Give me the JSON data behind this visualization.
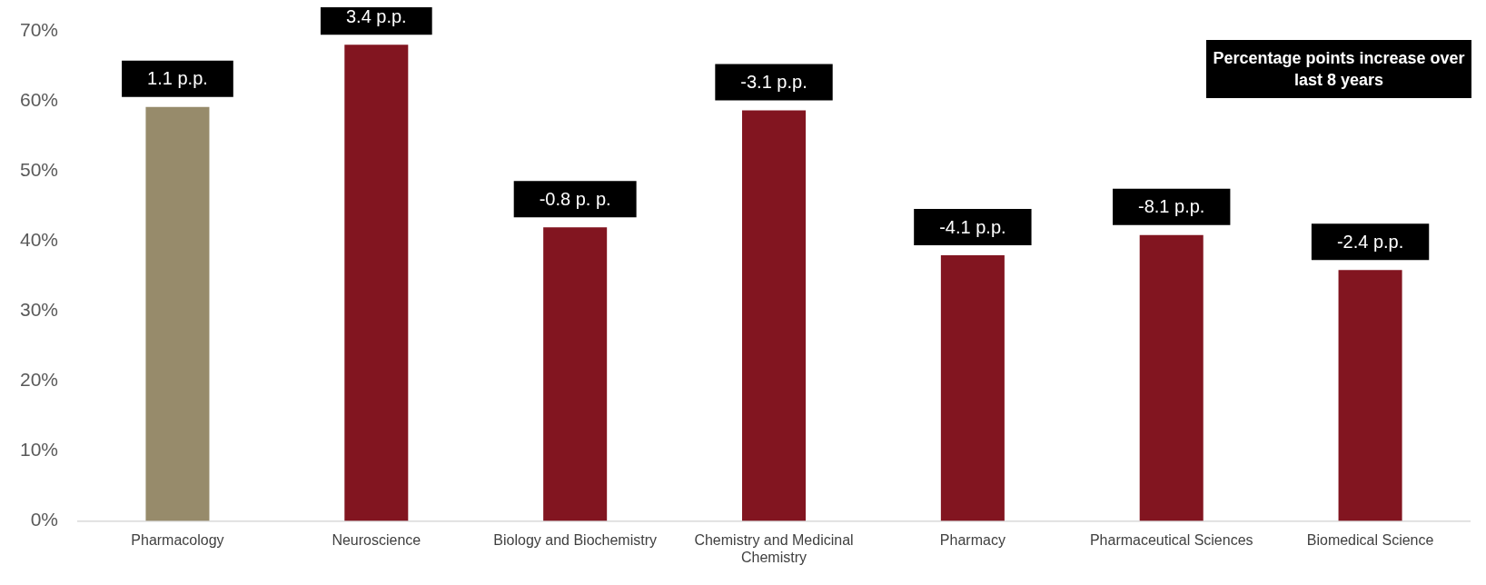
{
  "chart_data": {
    "type": "bar",
    "categories": [
      "Pharmacology",
      "Neuroscience",
      "Biology and Biochemistry",
      "Chemistry and Medicinal Chemistry",
      "Pharmacy",
      "Pharmaceutical Sciences",
      "Biomedical Science"
    ],
    "values": [
      59.2,
      68.1,
      42.0,
      58.7,
      38.0,
      40.9,
      35.9
    ],
    "colors": [
      "#978b6b",
      "#821520",
      "#821520",
      "#821520",
      "#821520",
      "#821520",
      "#821520"
    ],
    "ylim": [
      0,
      70
    ],
    "yticks": [
      {
        "value": 0,
        "label": "0%"
      },
      {
        "value": 10,
        "label": "10%"
      },
      {
        "value": 20,
        "label": "20%"
      },
      {
        "value": 30,
        "label": "30%"
      },
      {
        "value": 40,
        "label": "40%"
      },
      {
        "value": 50,
        "label": "50%"
      },
      {
        "value": 60,
        "label": "60%"
      },
      {
        "value": 70,
        "label": "70%"
      }
    ],
    "grid": false,
    "legend": false,
    "annotations": [
      "Percentage points increase over last 8 years",
      {
        "text": "1.1 p.p.",
        "x": "Pharmacology",
        "y": 59.2
      },
      {
        "text": "3.4 p.p.",
        "x": "Neuroscience",
        "y": 68.1
      },
      {
        "text": "-0.8 p. p.",
        "x": "Biology and Biochemistry",
        "y": 42.0
      },
      {
        "text": "-3.1 p.p.",
        "x": "Chemistry and Medicinal Chemistry",
        "y": 58.7
      },
      {
        "text": "-4.1 p.p.",
        "x": "Pharmacy",
        "y": 38.0
      },
      {
        "text": "-8.1 p.p.",
        "x": "Pharmaceutical Sciences",
        "y": 40.9
      },
      {
        "text": "-2.4 p.p.",
        "x": "Biomedical Science",
        "y": 35.9
      }
    ]
  }
}
